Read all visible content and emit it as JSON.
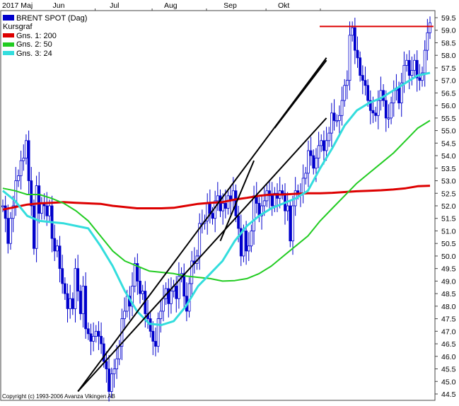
{
  "chart_data": {
    "type": "candlestick",
    "title": "BRENT SPOT (Dag)",
    "subtitle": "Kursgraf",
    "copyright": "Copyright (c) 1993-2006 Avanza Vikingen AB",
    "x_labels": [
      "2017 Maj",
      "Jun",
      "Jul",
      "Aug",
      "Sep",
      "Okt"
    ],
    "ylim": [
      44.5,
      59.5
    ],
    "y_ticks": [
      "59.5",
      "59.0",
      "58.5",
      "58.0",
      "57.5",
      "57.0",
      "56.5",
      "56.0",
      "55.5",
      "55.0",
      "54.5",
      "54.0",
      "53.5",
      "53.0",
      "52.5",
      "52.0",
      "51.5",
      "51.0",
      "50.5",
      "50.0",
      "49.5",
      "49.0",
      "48.5",
      "48.0",
      "47.5",
      "47.0",
      "46.5",
      "46.0",
      "45.5",
      "45.0",
      "44.5"
    ],
    "legend_position": "top-left",
    "grid": false,
    "series": [
      {
        "name": "BRENT SPOT (Dag)",
        "color": "#0000cc"
      },
      {
        "name": "Gns. 1: 200",
        "color": "#dd0000"
      },
      {
        "name": "Gns. 2: 50",
        "color": "#22cc22"
      },
      {
        "name": "Gns. 3: 24",
        "color": "#33dddd"
      }
    ],
    "price_close": [
      52.0,
      51.5,
      50.5,
      51.5,
      52.0,
      53.0,
      53.2,
      53.8,
      53.9,
      54.6,
      53.0,
      52.0,
      50.3,
      52.8,
      51.7,
      52.1,
      52.0,
      51.6,
      52.0,
      50.7,
      50.2,
      50.4,
      49.5,
      48.9,
      48.5,
      47.9,
      48.3,
      47.9,
      49.5,
      48.6,
      47.7,
      48.8,
      47.1,
      46.9,
      46.6,
      46.8,
      47.0,
      46.8,
      46.5,
      45.8,
      45.5,
      44.6,
      45.3,
      45.5,
      45.9,
      46.4,
      47.5,
      47.8,
      48.4,
      48.0,
      48.8,
      49.7,
      49.0,
      48.5,
      48.6,
      47.7,
      47.5,
      47.0,
      46.6,
      46.4,
      47.5,
      47.8,
      48.3,
      48.7,
      48.1,
      48.6,
      48.8,
      48.3,
      49.2,
      49.3,
      48.4,
      47.8,
      48.9,
      49.8,
      49.7,
      50.0,
      51.3,
      51.3,
      51.4,
      52.1,
      51.7,
      51.5,
      52.2,
      52.4,
      51.8,
      52.1,
      51.9,
      52.4,
      52.2,
      52.6,
      51.6,
      51.1,
      50.0,
      51.0,
      50.2,
      50.4,
      51.0,
      52.4,
      52.1,
      51.6,
      52.0,
      52.2,
      52.6,
      52.4,
      52.0,
      52.5,
      52.3,
      52.6,
      52.5,
      51.8,
      52.0,
      50.6,
      52.0,
      52.6,
      52.5,
      52.5,
      53.1,
      53.3,
      54.2,
      54.0,
      53.5,
      53.9,
      54.4,
      54.6,
      54.2,
      54.6,
      54.9,
      55.7,
      55.4,
      55.4,
      55.6,
      56.2,
      56.8,
      57.0,
      58.8,
      59.1,
      58.2,
      57.9,
      57.2,
      57.0,
      56.8,
      56.2,
      55.8,
      55.7,
      55.6,
      56.2,
      56.6,
      56.2,
      55.5,
      55.5,
      56.1,
      56.6,
      56.7,
      56.1,
      56.9,
      57.6,
      57.8,
      57.2,
      57.4,
      57.8,
      57.1,
      57.0,
      57.3,
      58.2,
      58.9,
      59.3
    ],
    "ma_200": [
      51.85,
      51.95,
      52.05,
      52.1,
      52.12,
      52.15,
      52.12,
      52.1,
      52.08,
      52.0,
      51.95,
      51.9,
      51.9,
      51.9,
      51.92,
      52.0,
      52.08,
      52.12,
      52.15,
      52.25,
      52.32,
      52.4,
      52.45,
      52.45,
      52.48,
      52.5,
      52.5,
      52.52,
      52.55,
      52.58,
      52.6,
      52.62,
      52.65,
      52.7,
      52.78,
      52.8
    ],
    "ma_50": [
      52.7,
      52.6,
      52.45,
      52.45,
      52.3,
      52.1,
      51.8,
      51.4,
      50.8,
      50.2,
      49.8,
      49.6,
      49.4,
      49.35,
      49.3,
      49.2,
      49.15,
      49.1,
      49.0,
      49.02,
      49.1,
      49.3,
      49.6,
      50.0,
      50.4,
      50.8,
      51.4,
      51.9,
      52.4,
      52.9,
      53.3,
      53.7,
      54.1,
      54.6,
      55.1,
      55.4
    ],
    "ma_24": [
      52.6,
      52.2,
      51.6,
      51.4,
      51.35,
      51.3,
      51.2,
      51.1,
      50.4,
      49.6,
      48.6,
      47.8,
      47.3,
      47.25,
      47.4,
      48.0,
      48.8,
      49.3,
      49.8,
      50.6,
      51.2,
      51.6,
      51.9,
      52.1,
      52.3,
      52.6,
      53.5,
      54.3,
      55.2,
      55.8,
      56.1,
      56.3,
      56.6,
      56.9,
      57.2,
      57.3
    ],
    "resistance_level": 59.15,
    "trendlines": [
      {
        "from": [
          "2017-06-12",
          44.6
        ],
        "to": [
          "2017-10-24",
          57.9
        ]
      },
      {
        "from": [
          "2017-06-12",
          44.6
        ],
        "to": [
          "2017-10-24",
          55.5
        ]
      },
      {
        "from": [
          "2017-08-28",
          50.6
        ],
        "to": [
          "2017-09-14",
          53.8
        ]
      },
      {
        "from": [
          "2017-09-26",
          55.1
        ],
        "to": [
          "2017-10-24",
          57.8
        ]
      }
    ]
  }
}
